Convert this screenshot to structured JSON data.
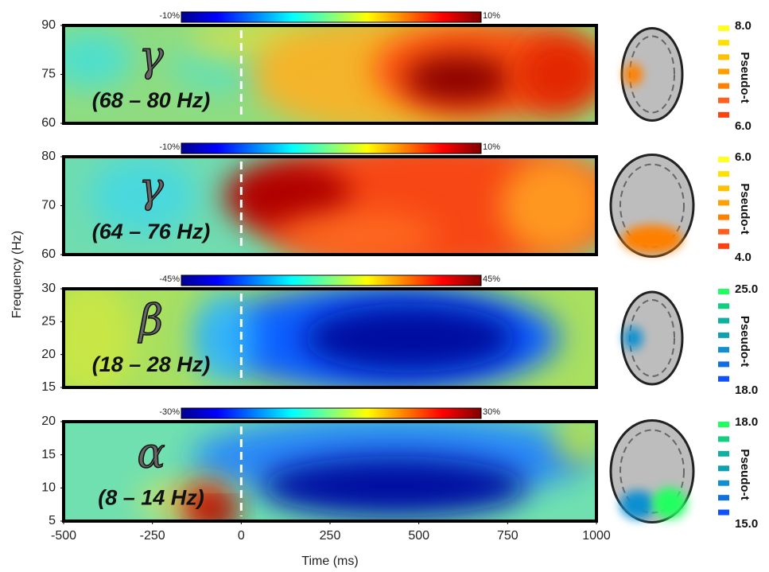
{
  "chart_data": [
    {
      "type": "heatmap",
      "symbol": "γ",
      "band": "(68 – 80 Hz)",
      "ylim": [
        60,
        90
      ],
      "yticks": [
        60,
        75,
        90
      ],
      "xlim": [
        -500,
        1000
      ],
      "cticks": [
        {
          "value": -10,
          "label": "-10%"
        },
        {
          "value": 10,
          "label": "10%"
        }
      ],
      "source_label": "Pseudo-t",
      "source_ticks": [
        {
          "value": 8,
          "label": "8.0"
        },
        {
          "value": 6,
          "label": "6.0"
        }
      ],
      "source_color": "warm"
    },
    {
      "type": "heatmap",
      "symbol": "γ",
      "band": "(64 – 76 Hz)",
      "ylim": [
        60,
        80
      ],
      "yticks": [
        60,
        70,
        80
      ],
      "xlim": [
        -500,
        1000
      ],
      "cticks": [
        {
          "value": -10,
          "label": "-10%"
        },
        {
          "value": 10,
          "label": "10%"
        }
      ],
      "source_label": "Pseudo-t",
      "source_ticks": [
        {
          "value": 6,
          "label": "6.0"
        },
        {
          "value": 4,
          "label": "4.0"
        }
      ],
      "source_color": "warm",
      "ylabel": "Frequency (Hz)"
    },
    {
      "type": "heatmap",
      "symbol": "β",
      "band": "(18 – 28 Hz)",
      "ylim": [
        15,
        30
      ],
      "yticks": [
        15,
        20,
        25,
        30
      ],
      "xlim": [
        -500,
        1000
      ],
      "cticks": [
        {
          "value": -45,
          "label": "-45%"
        },
        {
          "value": 45,
          "label": "45%"
        }
      ],
      "source_label": "Pseudo-t",
      "source_ticks": [
        {
          "value": 25,
          "label": "25.0"
        },
        {
          "value": 18,
          "label": "18.0"
        }
      ],
      "source_color": "cool"
    },
    {
      "type": "heatmap",
      "symbol": "α",
      "band": "(8 – 14 Hz)",
      "ylim": [
        5,
        20
      ],
      "yticks": [
        5,
        10,
        15,
        20
      ],
      "xlim": [
        -500,
        1000
      ],
      "cticks": [
        {
          "value": -30,
          "label": "-30%"
        },
        {
          "value": 30,
          "label": "30%"
        }
      ],
      "source_label": "Pseudo-t",
      "source_ticks": [
        {
          "value": 18,
          "label": "18.0"
        },
        {
          "value": 15,
          "label": "15.0"
        }
      ],
      "source_color": "cool",
      "xticks": [
        -500,
        -250,
        0,
        250,
        500,
        750,
        1000
      ],
      "xlabel": "Time (ms)"
    }
  ]
}
